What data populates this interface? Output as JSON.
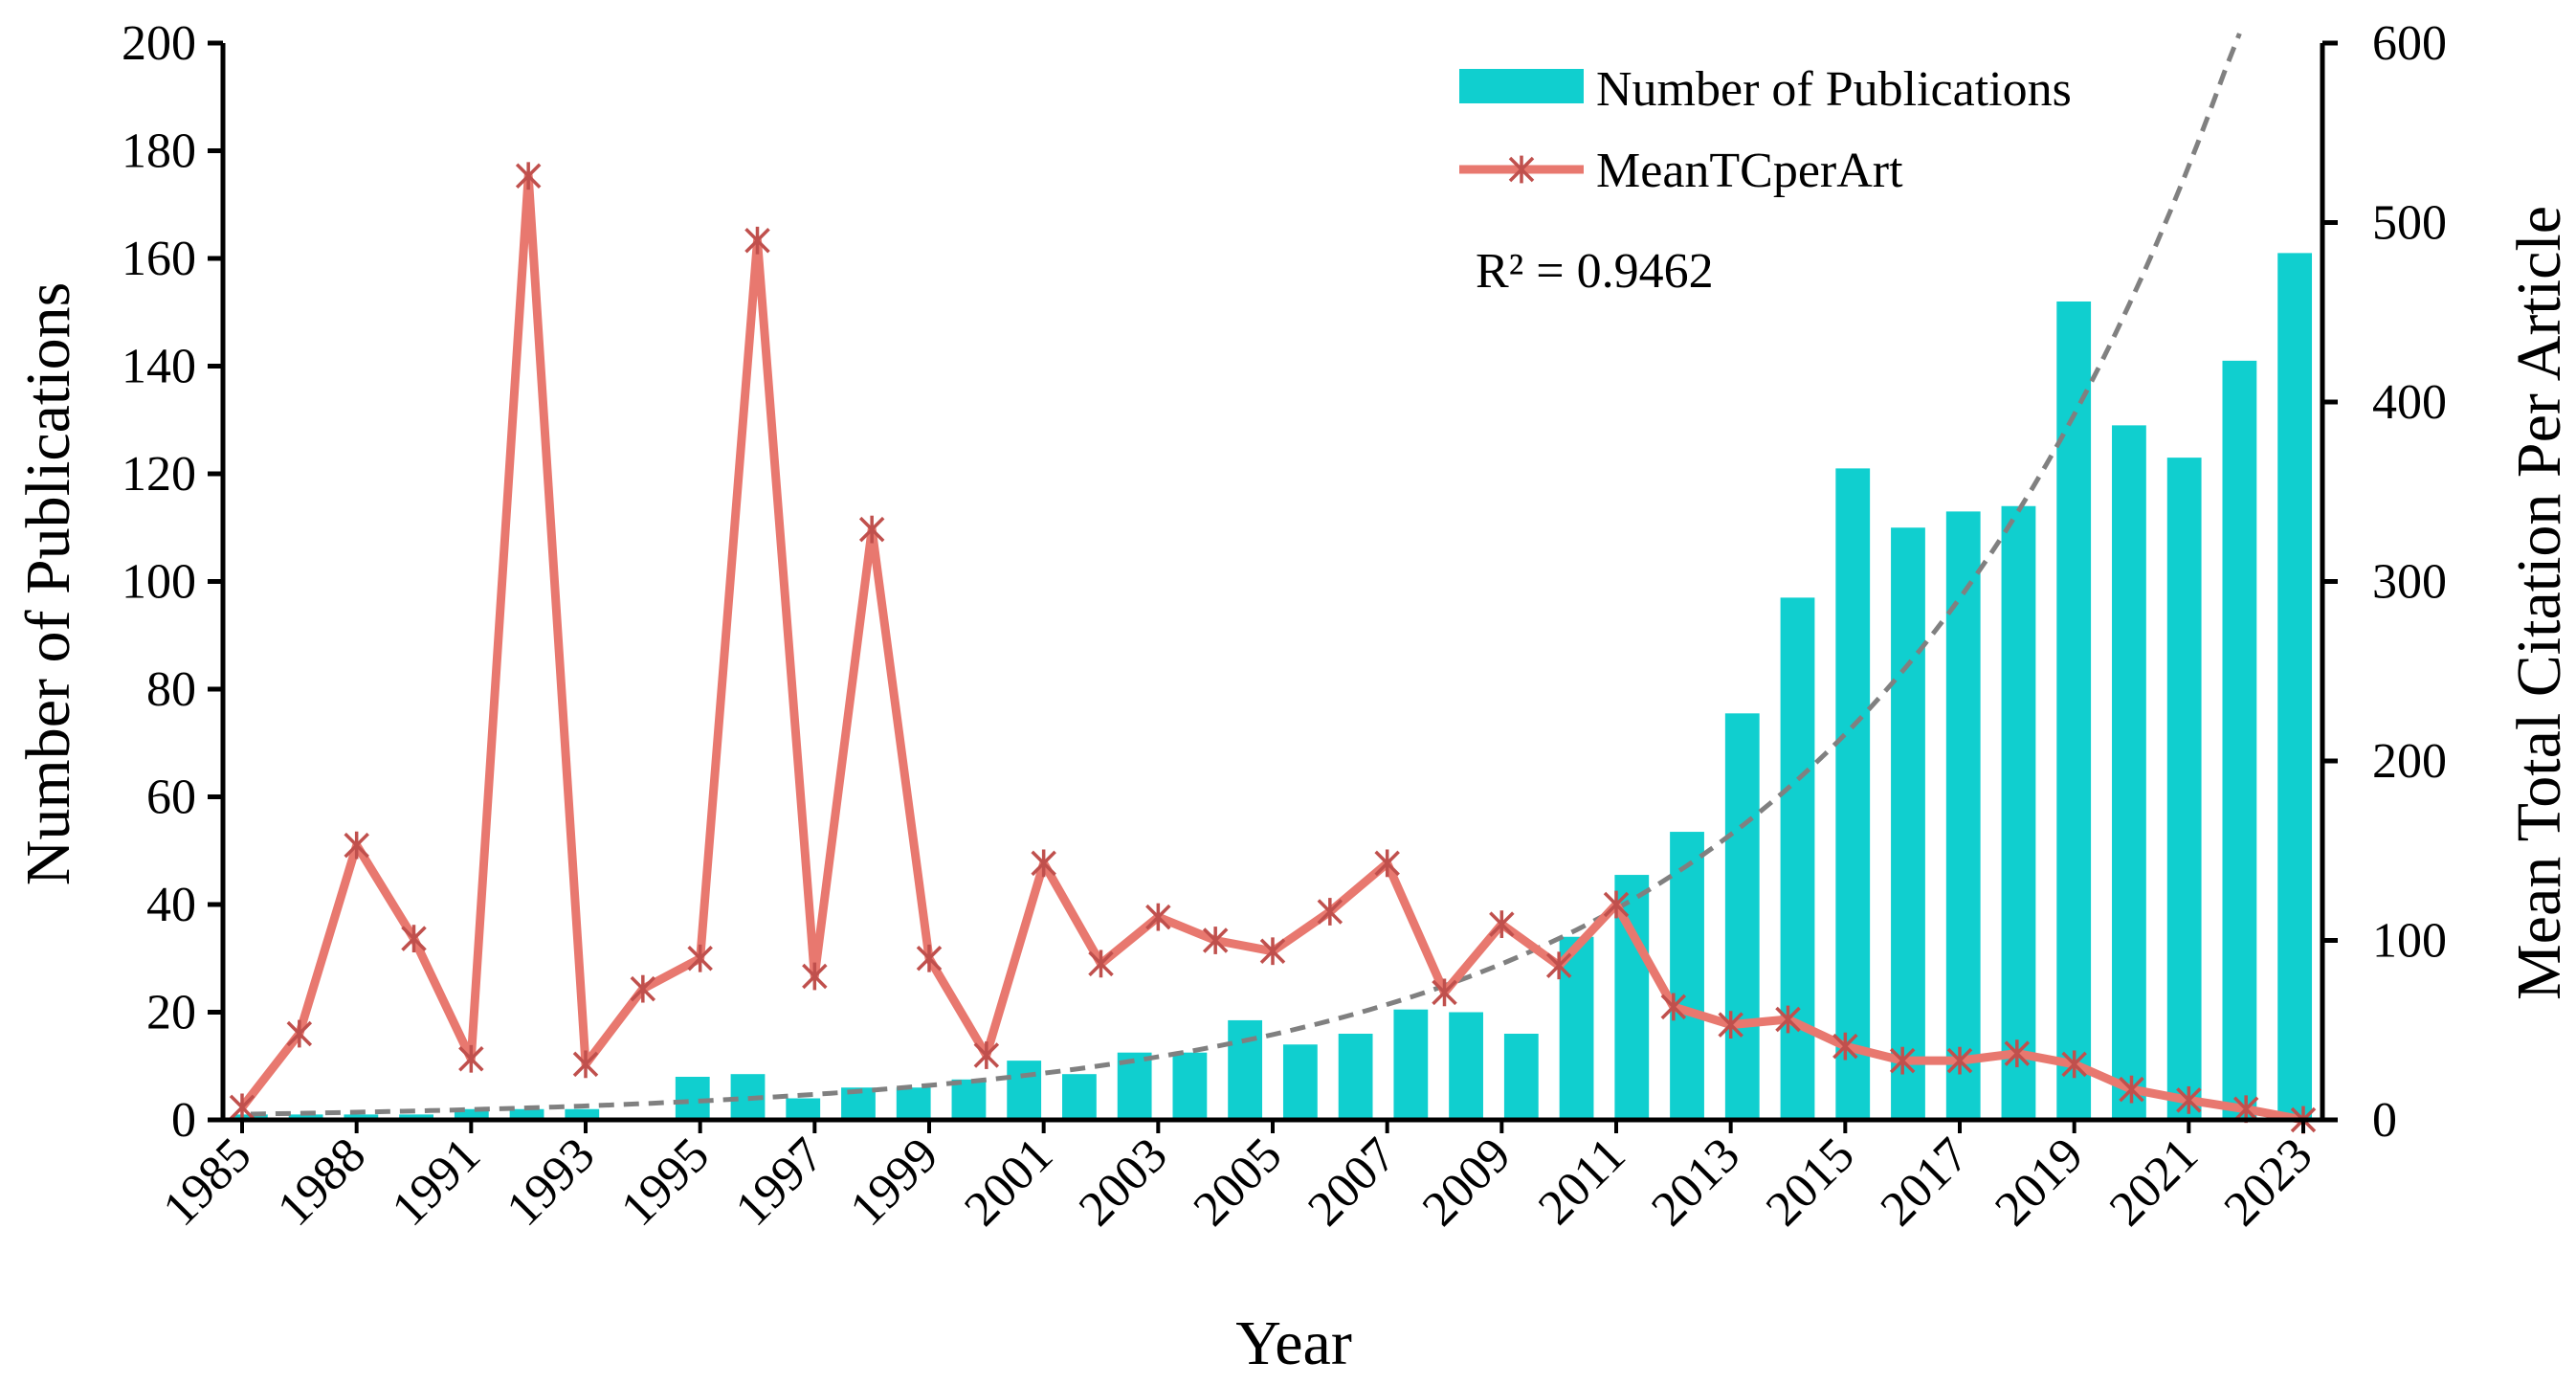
{
  "chart_data": {
    "type": "bar+line",
    "x_tick_labels": [
      "1985",
      "1988",
      "1991",
      "1993",
      "1995",
      "1997",
      "1999",
      "2001",
      "2003",
      "2005",
      "2007",
      "2009",
      "2011",
      "2013",
      "2015",
      "2017",
      "2019",
      "2021",
      "2023"
    ],
    "xlabel": "Year",
    "ylabel_left": "Number of Publications",
    "ylabel_right": "Mean Total Citation Per Article",
    "ylim_left": [
      0,
      200
    ],
    "ylim_right": [
      0,
      600
    ],
    "yticks_left": [
      "0",
      "20",
      "40",
      "60",
      "80",
      "100",
      "120",
      "140",
      "160",
      "180",
      "200"
    ],
    "yticks_right": [
      "0",
      "100",
      "200",
      "300",
      "400",
      "500",
      "600"
    ],
    "legend_position": "top-right",
    "series": [
      {
        "name": "Number of Publications",
        "type": "bar",
        "axis": "left",
        "color": "#10cfcf",
        "values": [
          1,
          1,
          1,
          1,
          2,
          2,
          2,
          0,
          8,
          8.5,
          4,
          6,
          6,
          7.5,
          11,
          8.5,
          12.5,
          12.5,
          18.5,
          14,
          16,
          20.5,
          20,
          16,
          34,
          45.5,
          53.5,
          75.5,
          97,
          121,
          110,
          113,
          114,
          152,
          129,
          123,
          141,
          161
        ]
      },
      {
        "name": "MeanTCperArt",
        "type": "line",
        "axis": "right",
        "color": "#e8786f",
        "marker_color": "#c0504d",
        "values": [
          7,
          48,
          153,
          101,
          34,
          526,
          31,
          73,
          90,
          490,
          80,
          329,
          90,
          36,
          143,
          87,
          113,
          100,
          94,
          116,
          143,
          71,
          109,
          86,
          120,
          63,
          53,
          56,
          41,
          33,
          33,
          37,
          31,
          17,
          11,
          6,
          0
        ]
      }
    ],
    "trendline": {
      "type": "exponential",
      "axis": "left",
      "style": "dashed",
      "color": "#808080",
      "r_squared_label": "R² = 0.9462"
    }
  }
}
